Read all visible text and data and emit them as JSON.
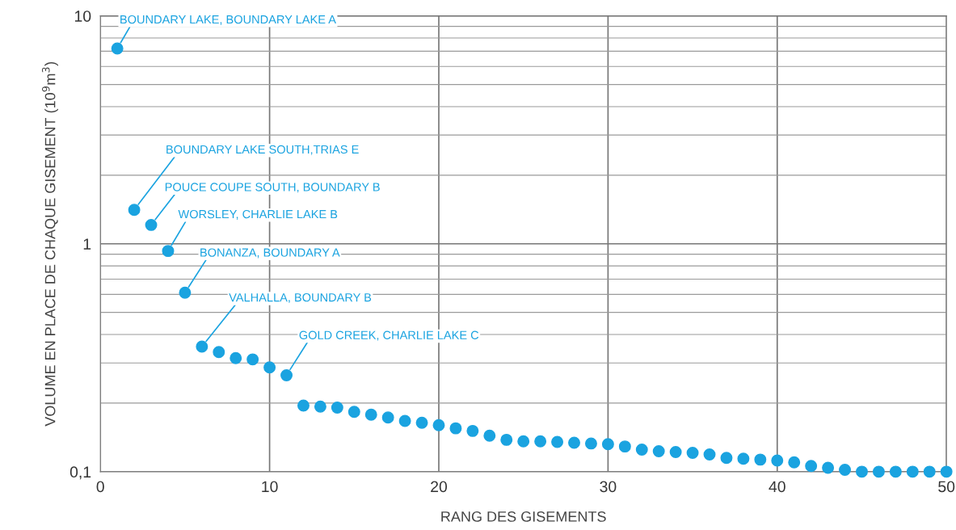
{
  "chart_data": {
    "type": "scatter",
    "xlabel": "RANG DES GISEMENTS",
    "ylabel": "VOLUME EN PLACE DE CHAQUE GISEMENT (10$^{9}$m$^{3}$)",
    "x": [
      1,
      2,
      3,
      4,
      5,
      6,
      7,
      8,
      9,
      10,
      11,
      12,
      13,
      14,
      15,
      16,
      17,
      18,
      19,
      20,
      21,
      22,
      23,
      24,
      25,
      26,
      27,
      28,
      29,
      30,
      31,
      32,
      33,
      34,
      35,
      36,
      37,
      38,
      39,
      40,
      41,
      42,
      43,
      44,
      45,
      46,
      47,
      48,
      49,
      50
    ],
    "series": [
      {
        "color": "#1aa3e0",
        "values": [
          7.2,
          1.41,
          1.21,
          0.93,
          0.61,
          0.354,
          0.335,
          0.315,
          0.311,
          0.287,
          0.265,
          0.195,
          0.193,
          0.191,
          0.183,
          0.178,
          0.173,
          0.167,
          0.164,
          0.16,
          0.155,
          0.151,
          0.144,
          0.138,
          0.136,
          0.136,
          0.135,
          0.134,
          0.133,
          0.132,
          0.129,
          0.125,
          0.123,
          0.122,
          0.121,
          0.119,
          0.115,
          0.114,
          0.113,
          0.112,
          0.11,
          0.106,
          0.104,
          0.102,
          0.1,
          0.1,
          0.1,
          0.1,
          0.1,
          0.1
        ]
      }
    ],
    "log": "y",
    "xlim": [
      0,
      50
    ],
    "xticks": [
      0,
      10,
      20,
      30,
      40,
      50
    ],
    "ylim": [
      0.1,
      10
    ],
    "yticks": [
      {
        "value": 0.1,
        "label": "0,1"
      },
      1,
      10
    ],
    "grid": true,
    "marker": "circle",
    "annotations": [
      {
        "text": "BOUNDARY LAKE, BOUNDARY LAKE A",
        "x": 1,
        "y": 7.2
      },
      {
        "text": "BOUNDARY LAKE SOUTH,TRIAS E",
        "x": 2,
        "y": 1.41
      },
      {
        "text": "POUCE COUPE SOUTH, BOUNDARY B",
        "x": 3,
        "y": 1.21
      },
      {
        "text": "WORSLEY, CHARLIE LAKE B",
        "x": 4,
        "y": 0.93
      },
      {
        "text": "BONANZA, BOUNDARY A",
        "x": 5,
        "y": 0.61
      },
      {
        "text": "VALHALLA, BOUNDARY B",
        "x": 6,
        "y": 0.354
      },
      {
        "text": "GOLD CREEK, CHARLIE LAKE C",
        "x": 11,
        "y": 0.265
      }
    ]
  }
}
